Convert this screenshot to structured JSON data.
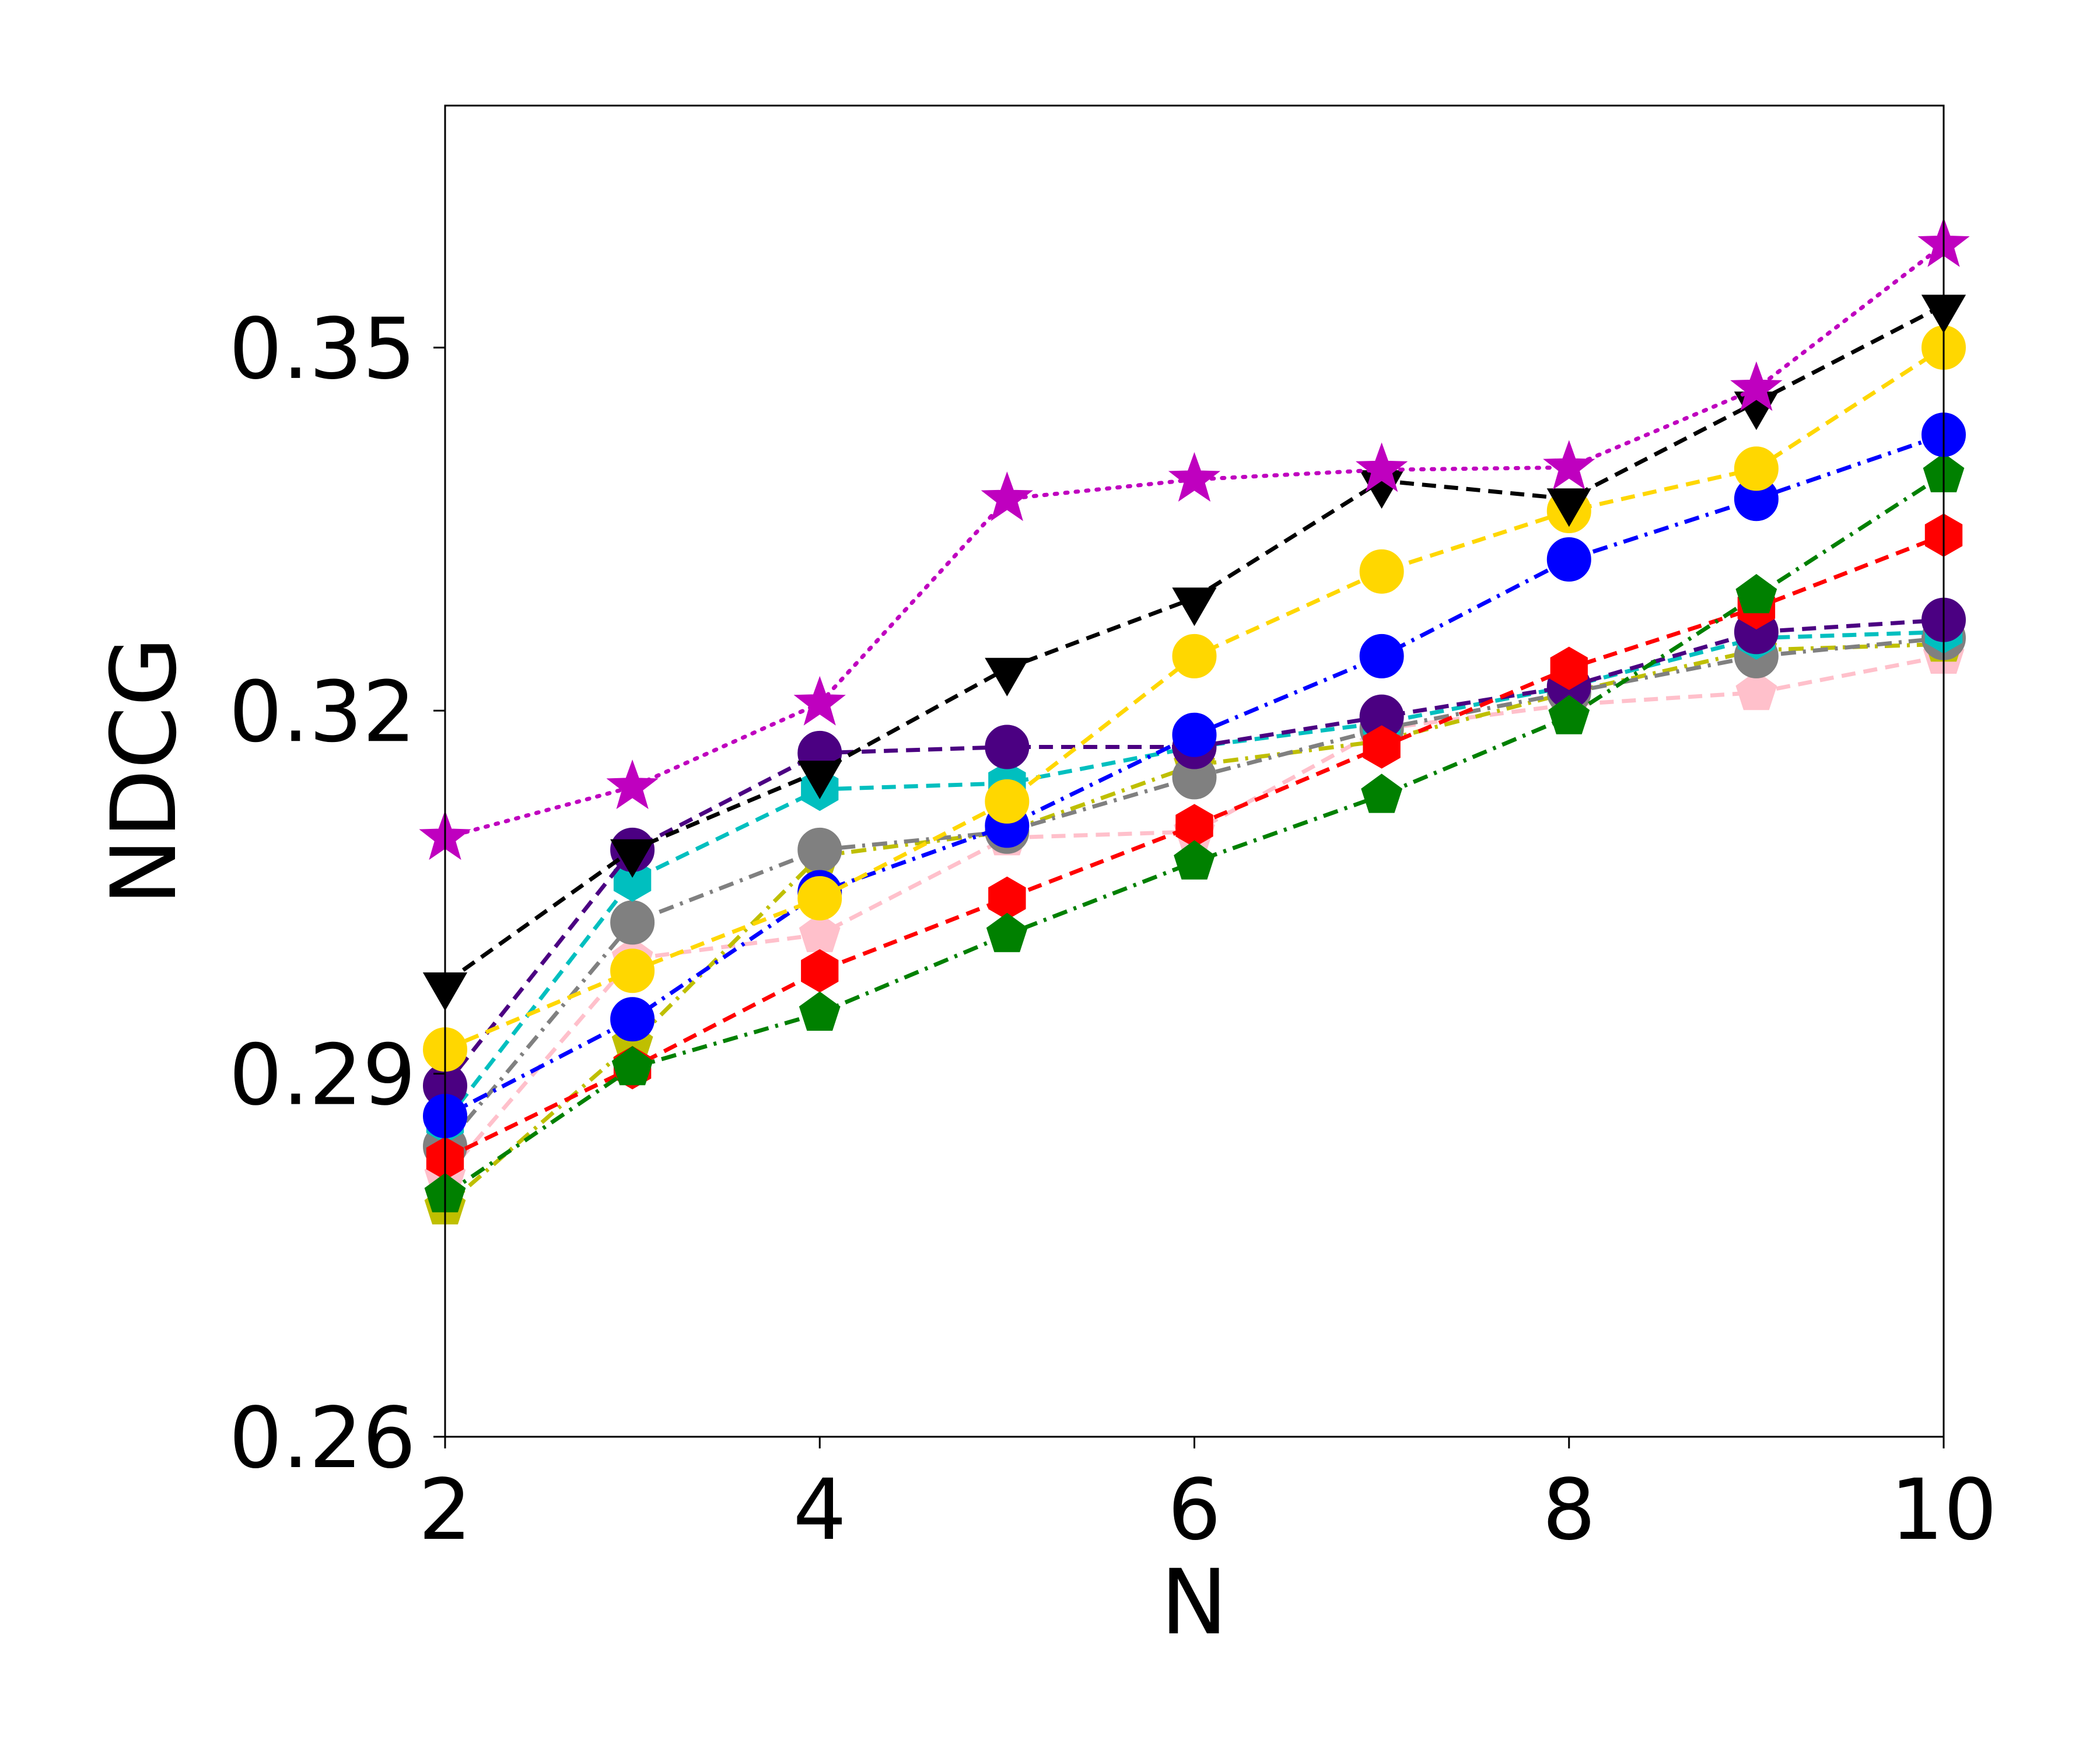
{
  "chart_data": {
    "type": "line",
    "xlabel": "N",
    "ylabel": "NDCG",
    "x": [
      2,
      3,
      4,
      5,
      6,
      7,
      8,
      9,
      10
    ],
    "xlim": [
      2,
      10
    ],
    "ylim": [
      0.26,
      0.37
    ],
    "xticks": [
      2,
      4,
      6,
      8,
      10
    ],
    "yticks": [
      0.26,
      0.29,
      0.32,
      0.35
    ],
    "xtick_labels": [
      "2",
      "4",
      "6",
      "8",
      "10"
    ],
    "ytick_labels": [
      "0.26",
      "0.29",
      "0.32",
      "0.35"
    ],
    "grid": false,
    "series": [
      {
        "color": "#bf00bf",
        "line_style": "dotted",
        "marker": "star",
        "values": [
          0.3095,
          0.3137,
          0.3206,
          0.3375,
          0.3391,
          0.3399,
          0.3401,
          0.3466,
          0.3585
        ]
      },
      {
        "color": "#000000",
        "line_style": "dashed",
        "marker": "triangle-down",
        "values": [
          0.2975,
          0.3085,
          0.315,
          0.3235,
          0.3293,
          0.339,
          0.3375,
          0.3455,
          0.3535
        ]
      },
      {
        "color": "#ffd700",
        "line_style": "dashed",
        "marker": "circle",
        "values": [
          0.292,
          0.2985,
          0.3045,
          0.3125,
          0.3245,
          0.3315,
          0.3365,
          0.34,
          0.35
        ]
      },
      {
        "color": "#0000ff",
        "line_style": "dashdot",
        "marker": "circle",
        "values": [
          0.2865,
          0.2945,
          0.305,
          0.3105,
          0.318,
          0.3245,
          0.3325,
          0.3375,
          0.3428
        ]
      },
      {
        "color": "#008000",
        "line_style": "dashdot",
        "marker": "pentagon",
        "values": [
          0.28,
          0.2905,
          0.295,
          0.3015,
          0.3075,
          0.313,
          0.3195,
          0.3295,
          0.3395
        ]
      },
      {
        "color": "#ff0000",
        "line_style": "dashed",
        "marker": "hexagon",
        "values": [
          0.283,
          0.2905,
          0.2985,
          0.3045,
          0.3105,
          0.317,
          0.3235,
          0.3285,
          0.3345
        ]
      },
      {
        "color": "#4b0082",
        "line_style": "dashed",
        "marker": "circle",
        "values": [
          0.289,
          0.3085,
          0.3165,
          0.317,
          0.317,
          0.3195,
          0.322,
          0.3265,
          0.3275
        ]
      },
      {
        "color": "#00bfbf",
        "line_style": "dashed",
        "marker": "hexagon",
        "values": [
          0.286,
          0.306,
          0.3135,
          0.314,
          0.317,
          0.319,
          0.322,
          0.326,
          0.3265
        ]
      },
      {
        "color": "#808080",
        "line_style": "dashdot",
        "marker": "circle",
        "values": [
          0.284,
          0.3025,
          0.3085,
          0.31,
          0.3145,
          0.3185,
          0.3215,
          0.3245,
          0.326
        ]
      },
      {
        "color": "#bfbf00",
        "line_style": "dashdot",
        "marker": "pentagon",
        "values": [
          0.279,
          0.2925,
          0.308,
          0.31,
          0.3155,
          0.3175,
          0.3215,
          0.325,
          0.3255
        ]
      },
      {
        "color": "#ffc0cb",
        "line_style": "dashed",
        "marker": "pentagon",
        "values": [
          0.2815,
          0.2995,
          0.3015,
          0.3095,
          0.31,
          0.3185,
          0.3205,
          0.3215,
          0.3245
        ]
      }
    ]
  }
}
